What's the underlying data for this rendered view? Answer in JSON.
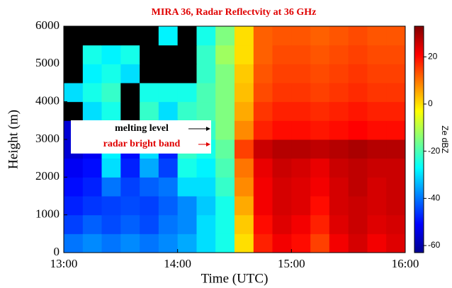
{
  "chart_data": {
    "type": "heatmap",
    "title": "MIRA 36, Radar Reflectvity at 36 GHz",
    "x_label": "Time (UTC)",
    "y_label": "Height (m)",
    "colorbar_label": "Ze dBZ",
    "annotations": [
      "melting level",
      "radar bright band"
    ],
    "colormap": "jet",
    "null_color": "#000000",
    "xlim": [
      13,
      16
    ],
    "xticks": [
      {
        "value": 13,
        "label": "13:00"
      },
      {
        "value": 14,
        "label": "14:00"
      },
      {
        "value": 15,
        "label": "15:00"
      },
      {
        "value": 16,
        "label": "16:00"
      }
    ],
    "ylim": [
      0,
      6000
    ],
    "yticks": [
      0,
      1000,
      2000,
      3000,
      4000,
      5000,
      6000
    ],
    "clim": [
      -63,
      33
    ],
    "cticks": [
      -60,
      -40,
      -20,
      0,
      20
    ],
    "x_edges": [
      13,
      13.167,
      13.333,
      13.5,
      13.667,
      13.833,
      14,
      14.167,
      14.333,
      14.5,
      14.667,
      14.833,
      15,
      15.167,
      15.333,
      15.5,
      15.667,
      15.833,
      16
    ],
    "y_edges": [
      0,
      500,
      1000,
      1500,
      2000,
      2500,
      3000,
      3500,
      4000,
      4500,
      5000,
      5500,
      6000
    ],
    "z": [
      [
        -40,
        -38,
        -40,
        -38,
        -40,
        -38,
        -35,
        -30,
        -25,
        0,
        18,
        22,
        20,
        15,
        22,
        25,
        22,
        24
      ],
      [
        -45,
        -42,
        -44,
        -42,
        -44,
        -40,
        -38,
        -30,
        -25,
        2,
        20,
        24,
        22,
        18,
        24,
        26,
        24,
        25
      ],
      [
        -48,
        -46,
        -45,
        -44,
        -45,
        -42,
        -38,
        -32,
        -25,
        5,
        22,
        25,
        24,
        20,
        25,
        26,
        25,
        26
      ],
      [
        -50,
        -48,
        -40,
        -45,
        -42,
        -40,
        -30,
        -30,
        -22,
        8,
        22,
        25,
        24,
        22,
        25,
        27,
        25,
        26
      ],
      [
        -52,
        -50,
        -30,
        -48,
        -35,
        -45,
        -25,
        -28,
        -20,
        10,
        23,
        26,
        25,
        23,
        26,
        27,
        26,
        26
      ],
      [
        -55,
        -52,
        -28,
        -50,
        -30,
        -48,
        -22,
        -25,
        -18,
        15,
        26,
        28,
        28,
        27,
        28,
        29,
        28,
        28
      ],
      [
        -55,
        -40,
        -25,
        -50,
        -25,
        -35,
        -20,
        -22,
        -15,
        8,
        18,
        20,
        20,
        19,
        20,
        21,
        20,
        20
      ],
      [
        null,
        -30,
        -25,
        null,
        -22,
        -30,
        -22,
        -20,
        -15,
        5,
        16,
        18,
        18,
        17,
        18,
        19,
        18,
        18
      ],
      [
        -30,
        -25,
        -22,
        null,
        -25,
        -25,
        -25,
        -20,
        -15,
        3,
        14,
        16,
        16,
        15,
        16,
        17,
        16,
        16
      ],
      [
        null,
        -28,
        -25,
        -30,
        null,
        null,
        null,
        -22,
        -15,
        2,
        13,
        15,
        15,
        14,
        15,
        16,
        15,
        15
      ],
      [
        null,
        -25,
        -28,
        -25,
        null,
        null,
        null,
        -22,
        -12,
        0,
        12,
        14,
        14,
        13,
        14,
        15,
        14,
        14
      ],
      [
        null,
        null,
        null,
        null,
        null,
        -28,
        null,
        -25,
        -15,
        0,
        12,
        13,
        13,
        12,
        13,
        14,
        13,
        13
      ]
    ]
  }
}
